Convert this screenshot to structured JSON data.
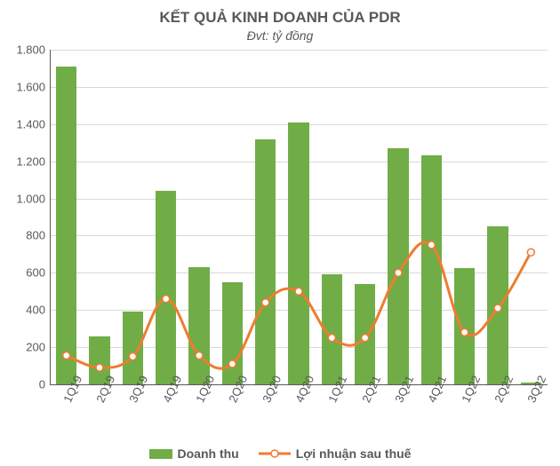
{
  "chart": {
    "type": "bar+line",
    "title": "KẾT QUẢ KINH DOANH CỦA PDR",
    "subtitle": "Đvt: tỷ đồng",
    "title_color": "#595959",
    "title_fontsize": 17,
    "subtitle_fontsize": 14,
    "background_color": "#ffffff",
    "grid_color": "#d9d9d9",
    "tick_color": "#595959",
    "axis_fontsize": 13,
    "y": {
      "min": 0,
      "max": 1800,
      "tick_step": 200,
      "ticks": [
        "0",
        "200",
        "400",
        "600",
        "800",
        "1.000",
        "1.200",
        "1.400",
        "1.600",
        "1.800"
      ]
    },
    "categories": [
      "1Q19",
      "2Q19",
      "3Q19",
      "4Q19",
      "1Q20",
      "2Q20",
      "3Q20",
      "4Q20",
      "1Q21",
      "2Q21",
      "3Q21",
      "4Q21",
      "1Q22",
      "2Q22",
      "3Q22"
    ],
    "series": {
      "revenue": {
        "label": "Doanh thu",
        "type": "bar",
        "color": "#70ad47",
        "bar_width": 0.62,
        "values": [
          1710,
          260,
          390,
          1040,
          630,
          550,
          1320,
          1410,
          590,
          540,
          1270,
          1230,
          625,
          850,
          11
        ]
      },
      "profit": {
        "label": "Lợi nhuận sau thuế",
        "type": "line",
        "color": "#ed7d31",
        "line_width": 3,
        "marker_fill": "#ffffff",
        "marker_stroke": "#ed7d31",
        "marker_radius": 4,
        "values": [
          155,
          90,
          150,
          460,
          155,
          110,
          440,
          500,
          250,
          250,
          600,
          750,
          280,
          410,
          710
        ]
      }
    },
    "legend": {
      "items": [
        "revenue",
        "profit"
      ]
    }
  }
}
